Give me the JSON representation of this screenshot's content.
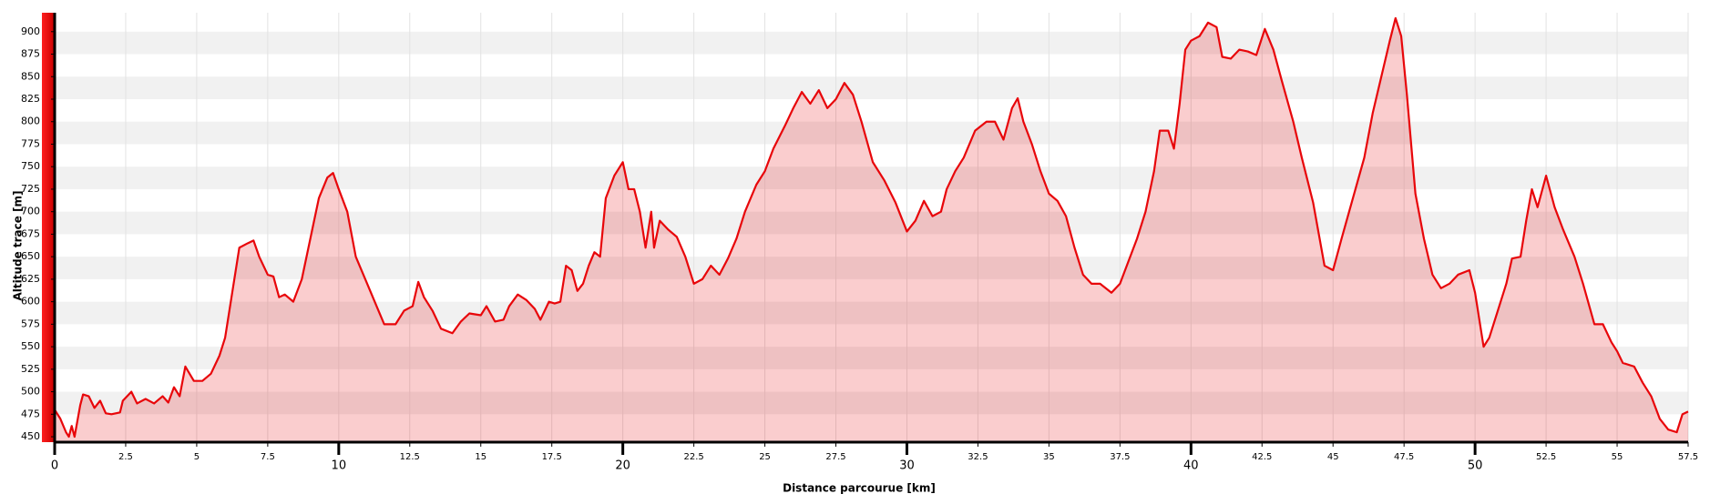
{
  "chart_data": {
    "type": "area",
    "x_label": "Distance parcourue [km]",
    "y_label": "Altitude trace [m]",
    "xlim": [
      0,
      57.5
    ],
    "ylim": [
      444,
      921
    ],
    "xticks": [
      0,
      2.5,
      5,
      7.5,
      10,
      12.5,
      15,
      17.5,
      20,
      22.5,
      25,
      27.5,
      30,
      32.5,
      35,
      37.5,
      40,
      42.5,
      45,
      47.5,
      50,
      52.5,
      55,
      57.5
    ],
    "yticks": [
      450,
      475,
      500,
      525,
      550,
      575,
      600,
      625,
      650,
      675,
      700,
      725,
      750,
      775,
      800,
      825,
      850,
      875,
      900
    ],
    "grid": true,
    "series": [
      {
        "color": "#e8060a",
        "x": [
          0,
          0.2,
          0.4,
          0.5,
          0.6,
          0.7,
          0.9,
          1.0,
          1.2,
          1.4,
          1.6,
          1.8,
          2.0,
          2.3,
          2.4,
          2.7,
          2.9,
          3.2,
          3.5,
          3.8,
          4.0,
          4.2,
          4.4,
          4.6,
          4.9,
          5.2,
          5.5,
          5.8,
          6.0,
          6.3,
          6.5,
          6.8,
          7.0,
          7.2,
          7.5,
          7.7,
          7.9,
          8.1,
          8.4,
          8.7,
          9.0,
          9.3,
          9.6,
          9.8,
          10.0,
          10.3,
          10.6,
          11.0,
          11.4,
          11.6,
          12.0,
          12.3,
          12.6,
          12.8,
          13.0,
          13.3,
          13.6,
          14.0,
          14.3,
          14.6,
          15.0,
          15.2,
          15.5,
          15.8,
          16.0,
          16.3,
          16.6,
          16.9,
          17.1,
          17.4,
          17.6,
          17.8,
          18.0,
          18.2,
          18.4,
          18.6,
          18.8,
          19.0,
          19.2,
          19.4,
          19.7,
          20.0,
          20.2,
          20.4,
          20.6,
          20.8,
          21.0,
          21.1,
          21.3,
          21.6,
          21.9,
          22.2,
          22.5,
          22.8,
          23.1,
          23.4,
          23.7,
          24.0,
          24.3,
          24.7,
          25.0,
          25.3,
          25.7,
          26.0,
          26.3,
          26.6,
          26.9,
          27.2,
          27.5,
          27.8,
          28.1,
          28.4,
          28.8,
          29.2,
          29.6,
          30.0,
          30.3,
          30.6,
          30.9,
          31.2,
          31.4,
          31.7,
          32.0,
          32.4,
          32.8,
          33.1,
          33.4,
          33.7,
          33.9,
          34.1,
          34.4,
          34.7,
          35.0,
          35.3,
          35.6,
          35.9,
          36.2,
          36.5,
          36.8,
          37.2,
          37.5,
          37.8,
          38.1,
          38.4,
          38.7,
          38.9,
          39.2,
          39.4,
          39.6,
          39.8,
          40.0,
          40.3,
          40.6,
          40.9,
          41.1,
          41.4,
          41.7,
          42.0,
          42.3,
          42.6,
          42.9,
          43.2,
          43.6,
          43.9,
          44.3,
          44.7,
          45.0,
          45.3,
          45.7,
          46.1,
          46.4,
          46.7,
          47.0,
          47.2,
          47.4,
          47.6,
          47.9,
          48.2,
          48.5,
          48.8,
          49.1,
          49.4,
          49.8,
          50.0,
          50.3,
          50.5,
          50.8,
          51.1,
          51.3,
          51.6,
          51.8,
          52.0,
          52.2,
          52.5,
          52.8,
          53.1,
          53.5,
          53.8,
          54.2,
          54.5,
          54.8,
          55.0,
          55.2,
          55.6,
          55.9,
          56.2,
          56.5,
          56.8,
          57.1,
          57.3,
          57.5
        ],
        "values": [
          480,
          470,
          455,
          450,
          462,
          450,
          485,
          497,
          495,
          482,
          490,
          476,
          475,
          477,
          490,
          500,
          487,
          492,
          487,
          495,
          488,
          505,
          495,
          528,
          512,
          512,
          520,
          540,
          560,
          620,
          660,
          665,
          668,
          650,
          630,
          628,
          605,
          608,
          600,
          625,
          670,
          715,
          738,
          743,
          725,
          700,
          650,
          620,
          590,
          575,
          575,
          590,
          595,
          622,
          605,
          590,
          570,
          565,
          578,
          587,
          585,
          595,
          578,
          580,
          595,
          608,
          602,
          592,
          580,
          600,
          598,
          600,
          640,
          635,
          612,
          620,
          640,
          655,
          650,
          715,
          740,
          755,
          725,
          725,
          700,
          660,
          700,
          660,
          690,
          680,
          672,
          650,
          620,
          625,
          640,
          630,
          648,
          670,
          700,
          730,
          745,
          770,
          795,
          815,
          833,
          820,
          835,
          815,
          825,
          843,
          830,
          800,
          755,
          735,
          710,
          678,
          690,
          712,
          695,
          700,
          725,
          745,
          760,
          790,
          800,
          800,
          780,
          815,
          826,
          800,
          775,
          745,
          720,
          712,
          695,
          660,
          630,
          620,
          620,
          610,
          620,
          645,
          670,
          700,
          745,
          790,
          790,
          770,
          820,
          880,
          890,
          895,
          910,
          905,
          872,
          870,
          880,
          878,
          874,
          903,
          880,
          845,
          800,
          760,
          710,
          640,
          635,
          670,
          715,
          760,
          810,
          850,
          890,
          915,
          895,
          830,
          720,
          670,
          630,
          615,
          620,
          630,
          635,
          610,
          550,
          560,
          590,
          620,
          648,
          650,
          690,
          725,
          705,
          740,
          705,
          680,
          650,
          620,
          575,
          575,
          555,
          545,
          532,
          528,
          510,
          495,
          470,
          458,
          455,
          475,
          478
        ]
      }
    ]
  }
}
